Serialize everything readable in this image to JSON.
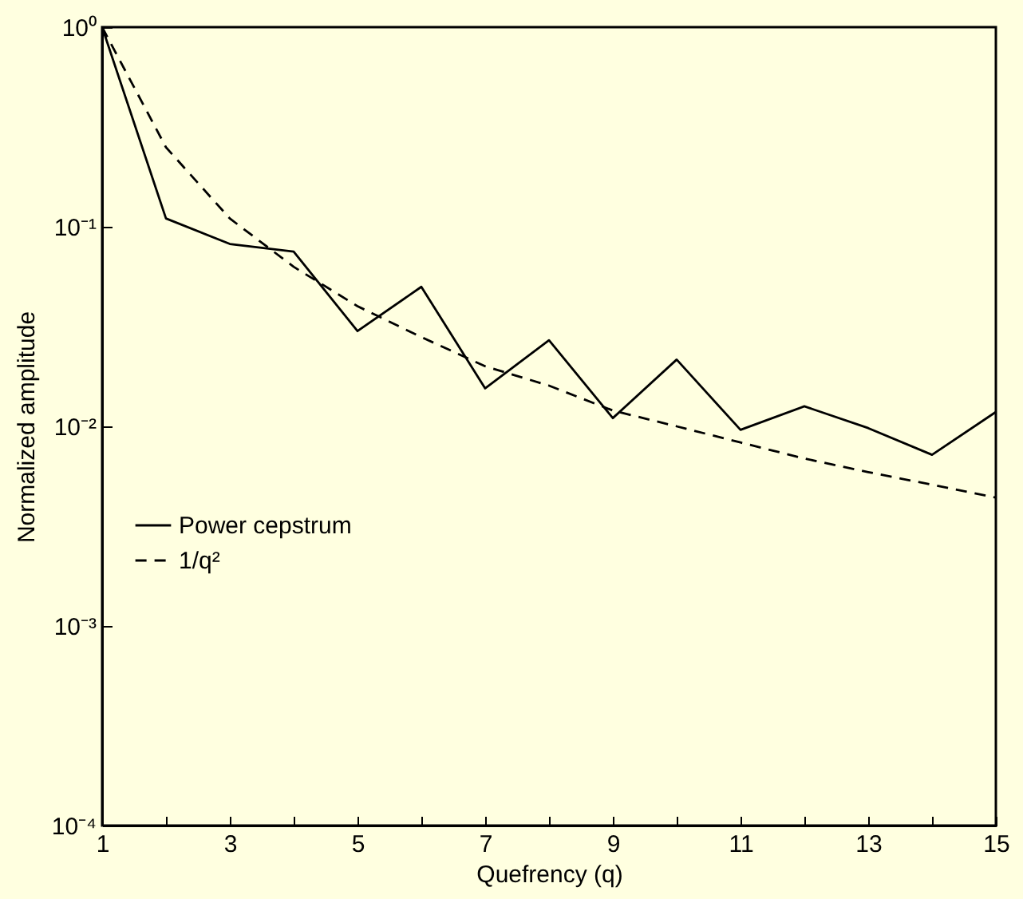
{
  "chart_data": {
    "type": "line",
    "xlabel": "Quefrency (q)",
    "ylabel": "Normalized amplitude",
    "x": [
      1,
      2,
      3,
      4,
      5,
      6,
      7,
      8,
      9,
      10,
      11,
      12,
      13,
      14,
      15
    ],
    "series": [
      {
        "name": "Power cepstrum",
        "color": "#000000",
        "line_style": "solid",
        "values": [
          1,
          0.11,
          0.082,
          0.075,
          0.03,
          0.05,
          0.0155,
          0.027,
          0.011,
          0.0216,
          0.0096,
          0.0126,
          0.0098,
          0.0072,
          0.0118
        ]
      },
      {
        "name": "1/q²",
        "color": "#000000",
        "line_style": "dashed",
        "values": [
          1,
          0.25,
          0.11,
          0.063,
          0.04,
          0.028,
          0.02,
          0.016,
          0.012,
          0.01,
          0.0083,
          0.0069,
          0.0059,
          0.0051,
          0.0044
        ]
      }
    ],
    "xlim": [
      1,
      15
    ],
    "xticks": [
      1,
      {
        "value": 2,
        "label": null
      },
      3,
      {
        "value": 4,
        "label": null
      },
      5,
      {
        "value": 6,
        "label": null
      },
      7,
      {
        "value": 8,
        "label": null
      },
      9,
      {
        "value": 10,
        "label": null
      },
      11,
      {
        "value": 12,
        "label": null
      },
      13,
      {
        "value": 14,
        "label": null
      },
      15
    ],
    "ylim": [
      0.0001,
      1
    ],
    "yticks": [
      {
        "value": 0.0001,
        "label": "10⁻⁴"
      },
      {
        "value": 0.001,
        "label": "10⁻³"
      },
      {
        "value": 0.01,
        "label": "10⁻²"
      },
      {
        "value": 0.1,
        "label": "10⁻¹"
      },
      {
        "value": 1,
        "label": "10⁰"
      }
    ],
    "log": "y",
    "grid": false,
    "legend": "left",
    "marker": "none"
  }
}
